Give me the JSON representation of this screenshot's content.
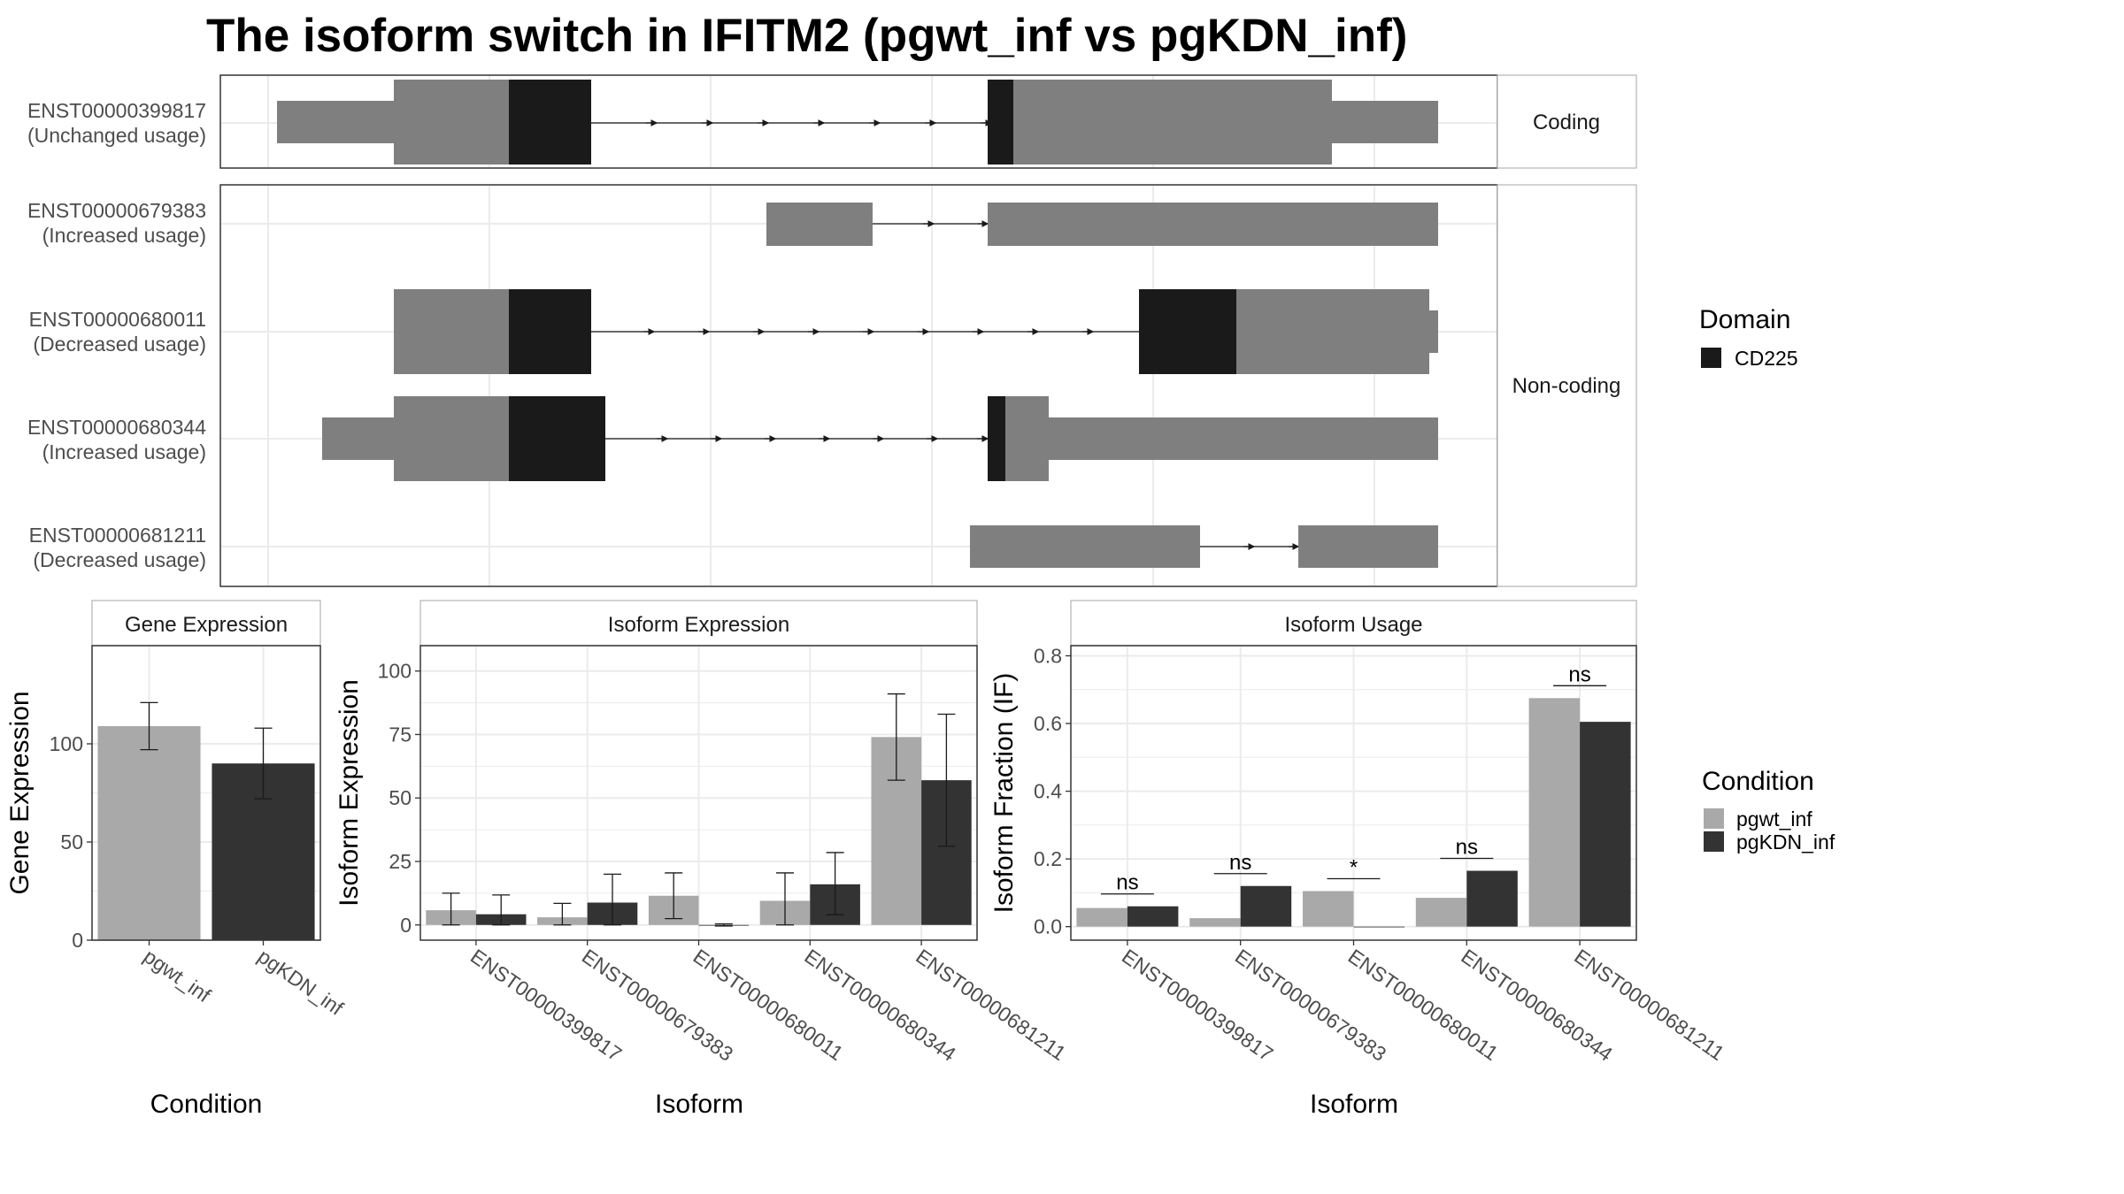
{
  "title": "The isoform switch in IFITM2 (pgwt_inf vs pgKDN_inf)",
  "colors": {
    "exon": "#7f7f7f",
    "domain": "#1a1a1a",
    "pgwt_inf": "#a9a9a9",
    "pgKDN_inf": "#333333",
    "grid": "#ebebeb",
    "panel_border": "#333333",
    "strip_border": "#b3b3b3"
  },
  "structure": {
    "strips": {
      "coding": "Coding",
      "noncoding": "Non-coding"
    },
    "rows": [
      {
        "id": "ENST00000399817",
        "usage": "(Unchanged usage)"
      },
      {
        "id": "ENST00000679383",
        "usage": "(Increased usage)"
      },
      {
        "id": "ENST00000680011",
        "usage": "(Decreased usage)"
      },
      {
        "id": "ENST00000680344",
        "usage": "(Increased usage)"
      },
      {
        "id": "ENST00000681211",
        "usage": "(Decreased usage)"
      }
    ],
    "legend": {
      "title": "Domain",
      "item": "CD225"
    }
  },
  "condition_legend": {
    "title": "Condition",
    "items": [
      "pgwt_inf",
      "pgKDN_inf"
    ]
  },
  "chart_data": [
    {
      "type": "bar",
      "strip": "Gene Expression",
      "xlabel": "Condition",
      "ylabel": "Gene Expression",
      "categories": [
        "pgwt_inf",
        "pgKDN_inf"
      ],
      "ylim": [
        0,
        150
      ],
      "yticks": [
        0,
        50,
        100
      ],
      "values": [
        109,
        90
      ],
      "errors": [
        [
          97,
          121
        ],
        [
          72,
          108
        ]
      ]
    },
    {
      "type": "bar",
      "strip": "Isoform Expression",
      "xlabel": "Isoform",
      "ylabel": "Isoform Expression",
      "categories": [
        "ENST00000399817",
        "ENST00000679383",
        "ENST00000680011",
        "ENST00000680344",
        "ENST00000681211"
      ],
      "ylim": [
        -6,
        110
      ],
      "yticks": [
        0,
        25,
        50,
        75,
        100
      ],
      "series": [
        {
          "name": "pgwt_inf",
          "values": [
            5.8,
            3,
            11.5,
            9.5,
            74
          ],
          "errors": [
            [
              0,
              12.5
            ],
            [
              0,
              8.5
            ],
            [
              2.5,
              20.5
            ],
            [
              0,
              20.5
            ],
            [
              57,
              91
            ]
          ]
        },
        {
          "name": "pgKDN_inf",
          "values": [
            4.2,
            8.8,
            0,
            16,
            57
          ],
          "errors": [
            [
              0,
              11.8
            ],
            [
              0,
              20
            ],
            [
              -0.4,
              0.4
            ],
            [
              4,
              28.5
            ],
            [
              31,
              83
            ]
          ]
        }
      ]
    },
    {
      "type": "bar",
      "strip": "Isoform Usage",
      "xlabel": "Isoform",
      "ylabel": "Isoform Fraction (IF)",
      "categories": [
        "ENST00000399817",
        "ENST00000679383",
        "ENST00000680011",
        "ENST00000680344",
        "ENST00000681211"
      ],
      "ylim": [
        -0.04,
        0.83
      ],
      "yticks": [
        0.0,
        0.2,
        0.4,
        0.6,
        0.8
      ],
      "ytick_labels": [
        "0.0",
        "0.2",
        "0.4",
        "0.6",
        "0.8"
      ],
      "series": [
        {
          "name": "pgwt_inf",
          "values": [
            0.055,
            0.025,
            0.105,
            0.085,
            0.675
          ]
        },
        {
          "name": "pgKDN_inf",
          "values": [
            0.06,
            0.12,
            0.0,
            0.165,
            0.605
          ]
        }
      ],
      "significance": [
        "ns",
        "ns",
        "*",
        "ns",
        "ns"
      ]
    }
  ]
}
